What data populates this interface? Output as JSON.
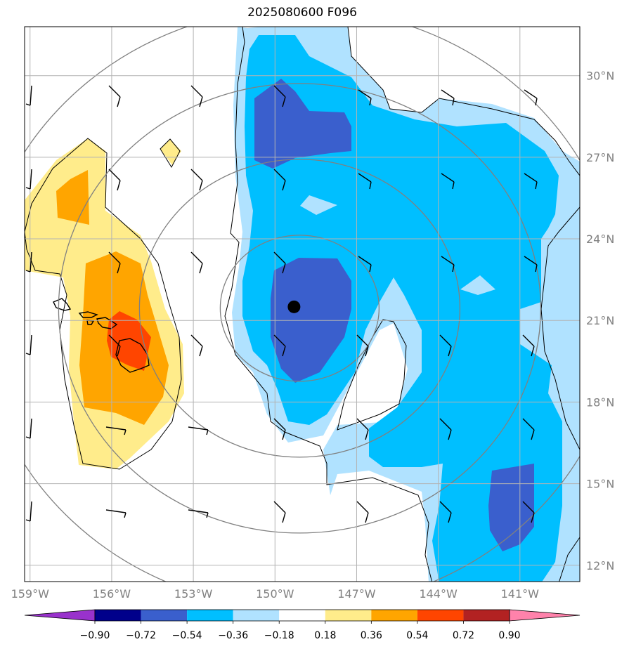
{
  "title": "2025080600 F096",
  "map": {
    "lon_range": [
      -159.2,
      -138.8
    ],
    "lat_range": [
      11.4,
      31.8
    ],
    "lon_ticks": [
      -159,
      -156,
      -153,
      -150,
      -147,
      -144,
      -141
    ],
    "lon_labels": [
      "159°W",
      "156°W",
      "153°W",
      "150°W",
      "147°W",
      "144°W",
      "141°W"
    ],
    "lat_ticks": [
      12,
      15,
      18,
      21,
      24,
      27,
      30
    ],
    "lat_labels": [
      "12°N",
      "15°N",
      "18°N",
      "21°N",
      "24°N",
      "27°N",
      "30°N"
    ],
    "gridlines": true,
    "storm_center": {
      "lon": -149.3,
      "lat": 21.5
    },
    "range_rings": 4
  },
  "colorbar": {
    "levels": [
      "−0.90",
      "−0.72",
      "−0.54",
      "−0.36",
      "−0.18",
      "0.18",
      "0.36",
      "0.54",
      "0.72",
      "0.90"
    ],
    "colors": [
      "#9932cc",
      "#00008b",
      "#3a5fcd",
      "#00bfff",
      "#b0e2ff",
      "#ffffff",
      "#ffec8b",
      "#ffa500",
      "#ff4500",
      "#b22222",
      "#ff82ab"
    ],
    "extend": "both"
  },
  "colors": {
    "grid": "#b3b3b3",
    "tick_label": "#808080",
    "ring": "#808080"
  }
}
